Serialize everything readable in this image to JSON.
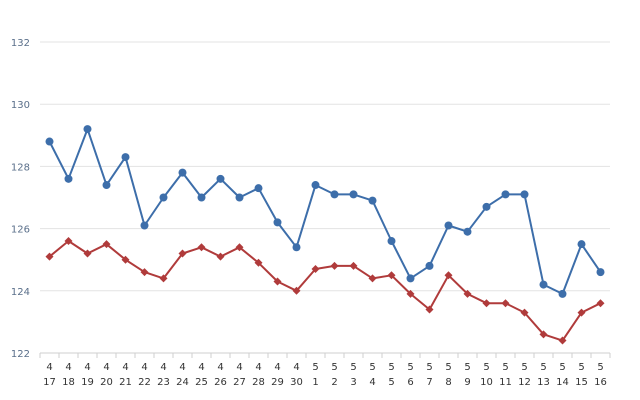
{
  "chart_data": {
    "type": "line",
    "title": "",
    "xlabel": "",
    "ylabel": "",
    "ylim": [
      122,
      132
    ],
    "yticks": [
      122,
      124,
      126,
      128,
      130,
      132
    ],
    "grid": true,
    "legend": "none",
    "categories": [
      {
        "month": "4",
        "day": "17"
      },
      {
        "month": "4",
        "day": "18"
      },
      {
        "month": "4",
        "day": "19"
      },
      {
        "month": "4",
        "day": "20"
      },
      {
        "month": "4",
        "day": "21"
      },
      {
        "month": "4",
        "day": "22"
      },
      {
        "month": "4",
        "day": "23"
      },
      {
        "month": "4",
        "day": "24"
      },
      {
        "month": "4",
        "day": "25"
      },
      {
        "month": "4",
        "day": "26"
      },
      {
        "month": "4",
        "day": "27"
      },
      {
        "month": "4",
        "day": "28"
      },
      {
        "month": "4",
        "day": "29"
      },
      {
        "month": "4",
        "day": "30"
      },
      {
        "month": "5",
        "day": "1"
      },
      {
        "month": "5",
        "day": "2"
      },
      {
        "month": "5",
        "day": "3"
      },
      {
        "month": "5",
        "day": "4"
      },
      {
        "month": "5",
        "day": "5"
      },
      {
        "month": "5",
        "day": "6"
      },
      {
        "month": "5",
        "day": "7"
      },
      {
        "month": "5",
        "day": "8"
      },
      {
        "month": "5",
        "day": "9"
      },
      {
        "month": "5",
        "day": "10"
      },
      {
        "month": "5",
        "day": "11"
      },
      {
        "month": "5",
        "day": "12"
      },
      {
        "month": "5",
        "day": "13"
      },
      {
        "month": "5",
        "day": "14"
      },
      {
        "month": "5",
        "day": "15"
      },
      {
        "month": "5",
        "day": "16"
      }
    ],
    "series": [
      {
        "color": "#3d6eaa",
        "marker": "circle",
        "values": [
          128.8,
          127.6,
          129.2,
          127.4,
          128.3,
          126.1,
          127.0,
          127.8,
          127.0,
          127.6,
          127.0,
          127.3,
          126.2,
          125.4,
          127.4,
          127.1,
          127.1,
          126.9,
          125.6,
          124.4,
          124.8,
          126.1,
          125.9,
          126.7,
          127.1,
          127.1,
          124.2,
          123.9,
          125.5,
          124.6
        ]
      },
      {
        "color": "#b03b3b",
        "marker": "diamond",
        "values": [
          125.1,
          125.6,
          125.2,
          125.5,
          125.0,
          124.6,
          124.4,
          125.2,
          125.4,
          125.1,
          125.4,
          124.9,
          124.3,
          124.0,
          124.7,
          124.8,
          124.8,
          124.4,
          124.5,
          123.9,
          123.4,
          124.5,
          123.9,
          123.6,
          123.6,
          123.3,
          122.6,
          122.4,
          123.3,
          123.6
        ]
      }
    ]
  }
}
